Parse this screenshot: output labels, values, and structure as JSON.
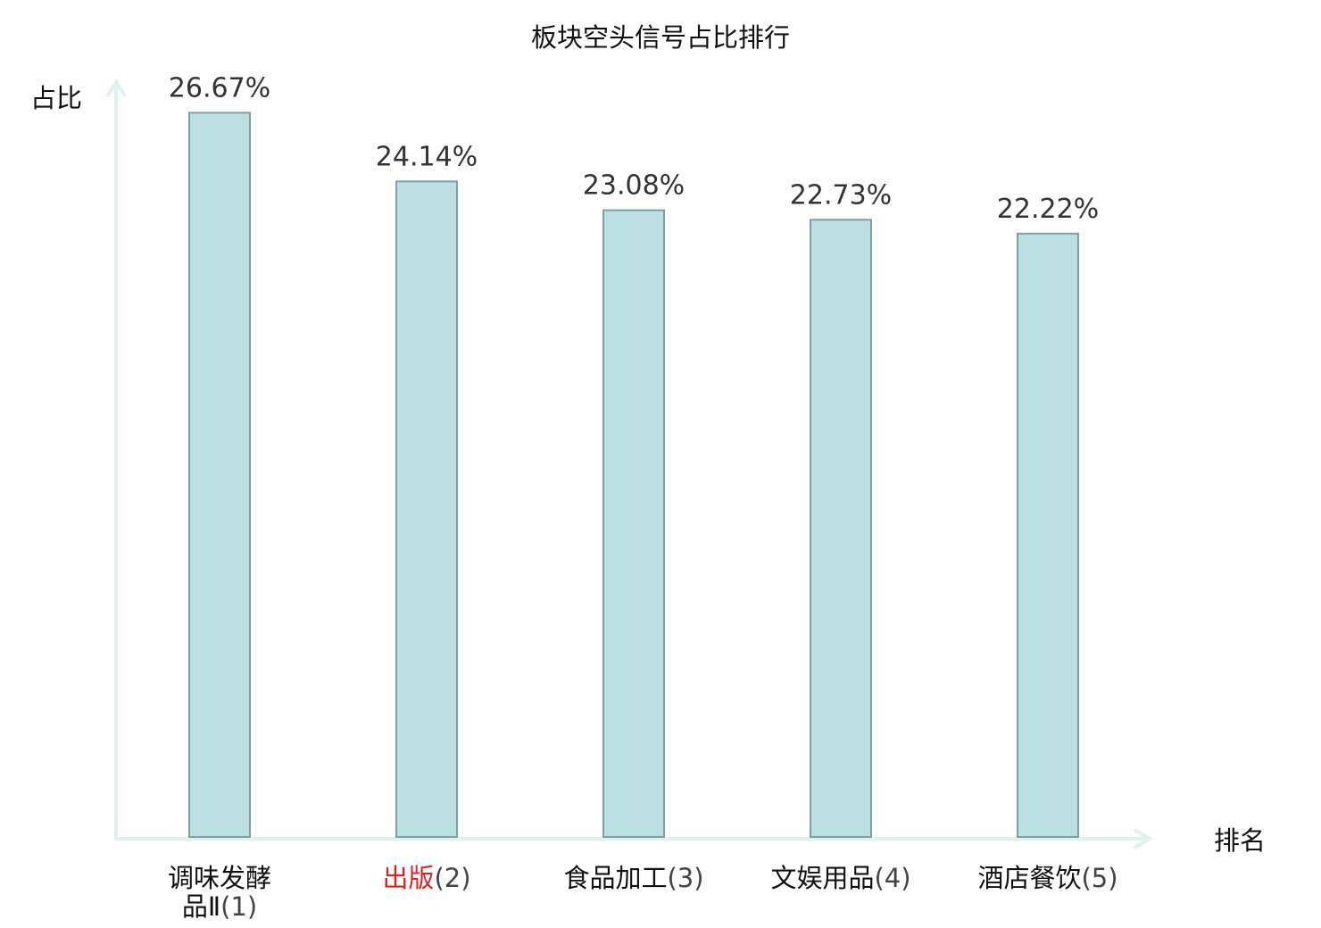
{
  "chart_data": {
    "type": "bar",
    "title": "板块空头信号占比排行",
    "xlabel": "排名",
    "ylabel": "占比",
    "ylim": [
      0,
      30
    ],
    "grid": false,
    "legend": "none",
    "bar_color": "#bce0e1",
    "bar_stroke": "#7fa0a2",
    "axis_color": "#e0f2ef",
    "highlight_color": "#e02020",
    "categories": [
      {
        "name": "调味发酵品Ⅱ",
        "rank": "(1)",
        "highlight": false
      },
      {
        "name": "出版",
        "rank": "(2)",
        "highlight": true
      },
      {
        "name": "食品加工",
        "rank": "(3)",
        "highlight": false
      },
      {
        "name": "文娱用品",
        "rank": "(4)",
        "highlight": false
      },
      {
        "name": "酒店餐饮",
        "rank": "(5)",
        "highlight": false
      }
    ],
    "values": [
      26.67,
      24.14,
      23.08,
      22.73,
      22.22
    ],
    "value_labels": [
      "26.67%",
      "24.14%",
      "23.08%",
      "22.73%",
      "22.22%"
    ]
  }
}
